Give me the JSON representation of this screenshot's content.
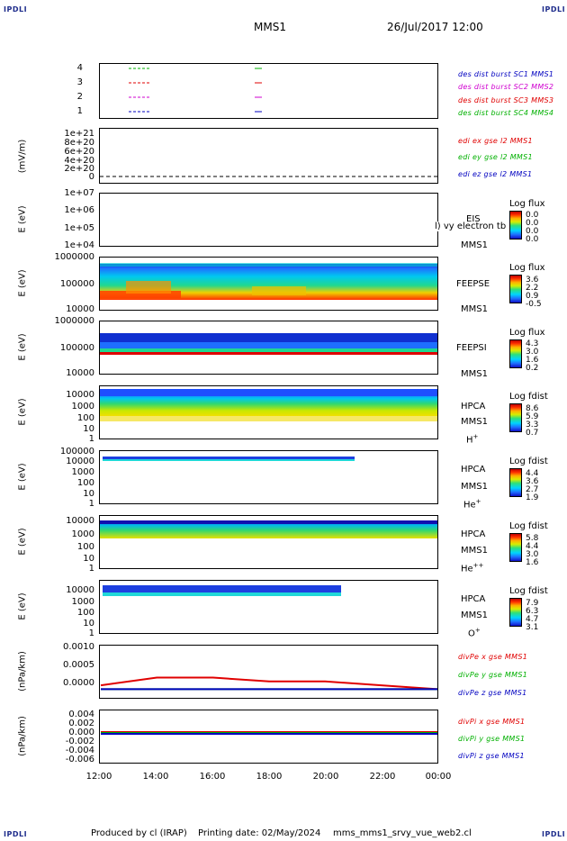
{
  "corner_label": "IPDLI",
  "header": {
    "spacecraft": "MMS1",
    "datetime": "26/Jul/2017 12:00"
  },
  "footer": {
    "produced_by": "Produced by cl (IRAP)",
    "printing_date": "Printing date: 02/May/2024",
    "script": "mms_mms1_srvy_vue_web2.cl"
  },
  "x_axis": {
    "ticks": [
      "12:00",
      "14:00",
      "16:00",
      "18:00",
      "20:00",
      "22:00",
      "00:00"
    ]
  },
  "panels": {
    "burst": {
      "yticks": [
        "4",
        "3",
        "2",
        "1"
      ],
      "labels": [
        {
          "text": "des dist burst SC1 MMS1",
          "color": "#0000c0"
        },
        {
          "text": "des dist burst SC2 MMS2",
          "color": "#d000d0"
        },
        {
          "text": "des dist burst SC3 MMS3",
          "color": "#e00000"
        },
        {
          "text": "des dist burst SC4 MMS4",
          "color": "#00b000"
        }
      ]
    },
    "edi": {
      "ylabel": "(mV/m)",
      "yticks": [
        "1e+21",
        "8e+20",
        "6e+20",
        "4e+20",
        "2e+20",
        "0"
      ],
      "labels": [
        {
          "text": "edi ex gse l2 MMS1",
          "color": "#e00000"
        },
        {
          "text": "edi ey gse l2 MMS1",
          "color": "#00b000"
        },
        {
          "text": "edi ez gse l2 MMS1",
          "color": "#0000c0"
        }
      ]
    },
    "eis": {
      "ylabel": "E (eV)",
      "yticks": [
        "1e+07",
        "1e+06",
        "1e+05",
        "1e+04"
      ],
      "inst": "EIS",
      "inst2": "MMS1",
      "overlay": "l) vy electron tb",
      "cb_title": "Log flux",
      "cb_vals": [
        "0.0",
        "0.0",
        "0.0",
        "0.0"
      ]
    },
    "feepse": {
      "ylabel": "E (eV)",
      "yticks": [
        "1000000",
        "100000",
        "10000"
      ],
      "inst": "FEEPSE",
      "inst2": "MMS1",
      "cb_title": "Log flux",
      "cb_vals": [
        "3.6",
        "2.2",
        "0.9",
        "-0.5"
      ]
    },
    "feepsi": {
      "ylabel": "E (eV)",
      "yticks": [
        "1000000",
        "100000",
        "10000"
      ],
      "inst": "FEEPSI",
      "inst2": "MMS1",
      "cb_title": "Log flux",
      "cb_vals": [
        "4.3",
        "3.0",
        "1.6",
        "0.2"
      ]
    },
    "hpca_h": {
      "ylabel": "E (eV)",
      "yticks": [
        "10000",
        "1000",
        "100",
        "10",
        "1"
      ],
      "inst": "HPCA",
      "inst2": "MMS1",
      "species": "H",
      "charge": "+",
      "cb_title": "Log fdist",
      "cb_vals": [
        "8.6",
        "5.9",
        "3.3",
        "0.7"
      ]
    },
    "hpca_he": {
      "ylabel": "E (eV)",
      "yticks": [
        "100000",
        "10000",
        "1000",
        "100",
        "10",
        "1"
      ],
      "inst": "HPCA",
      "inst2": "MMS1",
      "species": "He",
      "charge": "+",
      "cb_title": "Log fdist",
      "cb_vals": [
        "4.4",
        "3.6",
        "2.7",
        "1.9"
      ]
    },
    "hpca_hepp": {
      "ylabel": "E (eV)",
      "yticks": [
        "10000",
        "1000",
        "100",
        "10",
        "1"
      ],
      "inst": "HPCA",
      "inst2": "MMS1",
      "species": "He",
      "charge": "++",
      "cb_title": "Log fdist",
      "cb_vals": [
        "5.8",
        "4.4",
        "3.0",
        "1.6"
      ]
    },
    "hpca_o": {
      "ylabel": "E (eV)",
      "yticks": [
        "10000",
        "1000",
        "100",
        "10",
        "1"
      ],
      "inst": "HPCA",
      "inst2": "MMS1",
      "species": "O",
      "charge": "+",
      "cb_title": "Log fdist",
      "cb_vals": [
        "7.9",
        "6.3",
        "4.7",
        "3.1"
      ]
    },
    "divpe": {
      "ylabel": "(nPa/km)",
      "yticks": [
        "0.0010",
        "0.0005",
        "0.0000"
      ],
      "labels": [
        {
          "text": "divPe x gse MMS1",
          "color": "#e00000"
        },
        {
          "text": "divPe y gse MMS1",
          "color": "#00b000"
        },
        {
          "text": "divPe z gse MMS1",
          "color": "#0000c0"
        }
      ]
    },
    "divpi": {
      "ylabel": "(nPa/km)",
      "yticks": [
        "0.004",
        "0.002",
        "0.000",
        "-0.002",
        "-0.004",
        "-0.006"
      ],
      "labels": [
        {
          "text": "divPi x gse MMS1",
          "color": "#e00000"
        },
        {
          "text": "divPi y gse MMS1",
          "color": "#00b000"
        },
        {
          "text": "divPi z gse MMS1",
          "color": "#0000c0"
        }
      ]
    }
  },
  "chart_data": {
    "type": "line",
    "title": "MMS1 26/Jul/2017 12:00",
    "x": [
      "12:00",
      "14:00",
      "16:00",
      "18:00",
      "20:00",
      "22:00",
      "00:00"
    ],
    "series": [
      {
        "name": "divPe x gse MMS1",
        "values": [
          0.0001,
          0.0003,
          0.0003,
          0.0002,
          0.0002,
          0.0001,
          0.0
        ]
      },
      {
        "name": "divPe y gse MMS1",
        "values": [
          0.0,
          0.0,
          0.0,
          0.0,
          0.0,
          0.0,
          0.0
        ]
      },
      {
        "name": "divPe z gse MMS1",
        "values": [
          0.0,
          0.0,
          0.0,
          0.0,
          0.0,
          0.0,
          0.0
        ]
      }
    ],
    "ylabel": "(nPa/km)",
    "ylim": [
      -0.0002,
      0.0011
    ]
  }
}
